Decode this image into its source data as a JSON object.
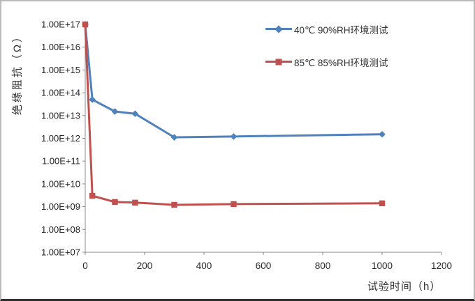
{
  "chart_data": {
    "type": "line",
    "title": "",
    "xlabel": "试验时间（h）",
    "ylabel": "绝缘阻抗（Ω）",
    "x_scale": "linear",
    "y_scale": "log",
    "xlim": [
      0,
      1200
    ],
    "ylim": [
      10000000.0,
      1e+17
    ],
    "grid": false,
    "legend_position": "inside-top-right",
    "x_tick_labels": [
      "0",
      "200",
      "400",
      "600",
      "800",
      "1000",
      "1200"
    ],
    "x_tick_values": [
      0,
      200,
      400,
      600,
      800,
      1000,
      1200
    ],
    "y_tick_labels": [
      "1.00E+17",
      "1.00E+16",
      "1.00E+15",
      "1.00E+14",
      "1.00E+13",
      "1.00E+12",
      "1.00E+11",
      "1.00E+10",
      "1.00E+09",
      "1.00E+08",
      "1.00E+07"
    ],
    "y_tick_exponents": [
      17,
      16,
      15,
      14,
      13,
      12,
      11,
      10,
      9,
      8,
      7
    ],
    "x": [
      0,
      24,
      100,
      168,
      300,
      500,
      1000
    ],
    "series": [
      {
        "name": "40℃ 90%RH环境测试",
        "color": "#4F81BD",
        "marker": "diamond",
        "values": [
          1e+17,
          50000000000000.0,
          15000000000000.0,
          12000000000000.0,
          1100000000000.0,
          1200000000000.0,
          1500000000000.0
        ]
      },
      {
        "name": "85℃ 85%RH环境测试",
        "color": "#C0504D",
        "marker": "square",
        "values": [
          1e+17,
          3000000000.0,
          1600000000.0,
          1500000000.0,
          1200000000.0,
          1300000000.0,
          1400000000.0
        ]
      }
    ]
  },
  "colors": {
    "axis": "#8c8c8c",
    "tick_text": "#262626",
    "title_text": "#303030",
    "series1": "#4F81BD",
    "series2": "#C0504D",
    "background": "#ffffff"
  }
}
